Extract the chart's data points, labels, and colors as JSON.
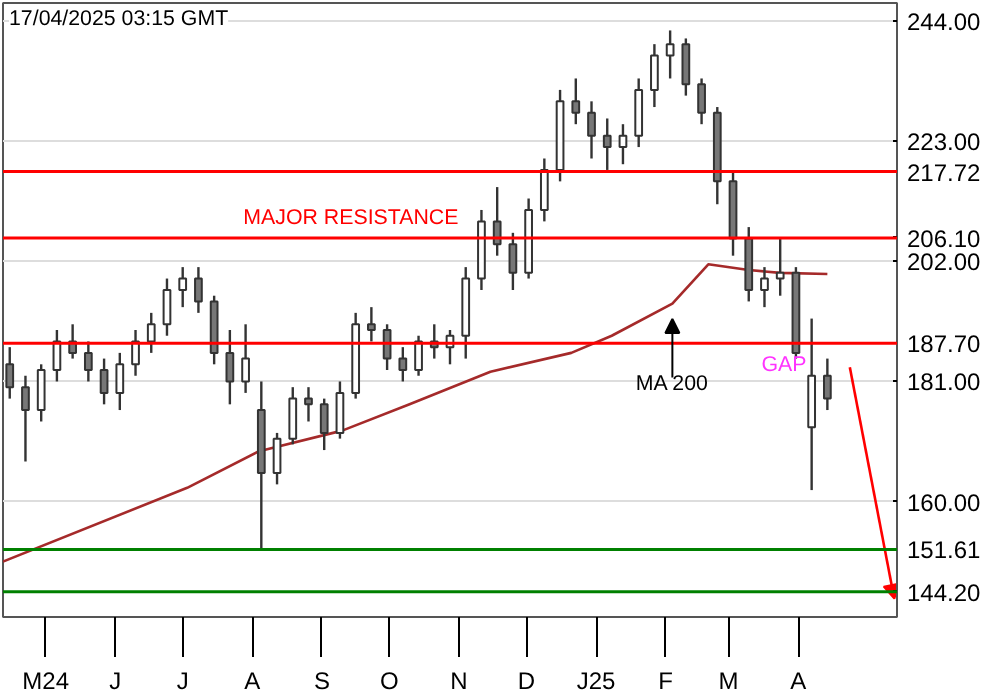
{
  "chart_data": {
    "type": "candlestick",
    "x": [
      "2024-04-15",
      "2024-04-22",
      "2024-04-29",
      "2024-05-06",
      "2024-05-13",
      "2024-05-20",
      "2024-05-27",
      "2024-06-03",
      "2024-06-10",
      "2024-06-17",
      "2024-06-24",
      "2024-07-01",
      "2024-07-08",
      "2024-07-15",
      "2024-07-22",
      "2024-07-29",
      "2024-08-05",
      "2024-08-12",
      "2024-08-19",
      "2024-08-26",
      "2024-09-02",
      "2024-09-09",
      "2024-09-16",
      "2024-09-23",
      "2024-09-30",
      "2024-10-07",
      "2024-10-14",
      "2024-10-21",
      "2024-10-28",
      "2024-11-04",
      "2024-11-11",
      "2024-11-18",
      "2024-11-25",
      "2024-12-02",
      "2024-12-09",
      "2024-12-16",
      "2024-12-23",
      "2024-12-30",
      "2025-01-06",
      "2025-01-13",
      "2025-01-20",
      "2025-01-27",
      "2025-02-03",
      "2025-02-10",
      "2025-02-17",
      "2025-02-24",
      "2025-03-03",
      "2025-03-10",
      "2025-03-17",
      "2025-03-24",
      "2025-03-31",
      "2025-04-07",
      "2025-04-14"
    ],
    "ohlc": [
      [
        184,
        187,
        178,
        180
      ],
      [
        180,
        182,
        167,
        176
      ],
      [
        176,
        184,
        174,
        183
      ],
      [
        183,
        190,
        181,
        188
      ],
      [
        188,
        191,
        185,
        186
      ],
      [
        186,
        188,
        181,
        183
      ],
      [
        183,
        185,
        177,
        179
      ],
      [
        179,
        186,
        176,
        184
      ],
      [
        184,
        190,
        182,
        188
      ],
      [
        188,
        193,
        186,
        191
      ],
      [
        191,
        199,
        189,
        197
      ],
      [
        197,
        201,
        194,
        199
      ],
      [
        199,
        201,
        193,
        195
      ],
      [
        195,
        196,
        184,
        186
      ],
      [
        186,
        190,
        177,
        181
      ],
      [
        181,
        191,
        179,
        185
      ],
      [
        176,
        181,
        151.61,
        165
      ],
      [
        165,
        172,
        163,
        171
      ],
      [
        171,
        180,
        170,
        178
      ],
      [
        178,
        180,
        174,
        177
      ],
      [
        177,
        178,
        169,
        172
      ],
      [
        172,
        181,
        171,
        179
      ],
      [
        179,
        193,
        178,
        191
      ],
      [
        191,
        194,
        188,
        190
      ],
      [
        190,
        191,
        183,
        185
      ],
      [
        185,
        187,
        181,
        183
      ],
      [
        183,
        189,
        182,
        188
      ],
      [
        188,
        191,
        185,
        187
      ],
      [
        187,
        190,
        184,
        189
      ],
      [
        189,
        201,
        185,
        199
      ],
      [
        199,
        211,
        197,
        209
      ],
      [
        209,
        215,
        203,
        205
      ],
      [
        205,
        207,
        197,
        200
      ],
      [
        200,
        213,
        199,
        211
      ],
      [
        211,
        220,
        209,
        218
      ],
      [
        218,
        232,
        216,
        230
      ],
      [
        230,
        234,
        226,
        228
      ],
      [
        228,
        230,
        220,
        224
      ],
      [
        224,
        227,
        218,
        222
      ],
      [
        222,
        226,
        219,
        224
      ],
      [
        224,
        234,
        222,
        232
      ],
      [
        232,
        240,
        229,
        238
      ],
      [
        238,
        242.4,
        234,
        240
      ],
      [
        240,
        241,
        231,
        233
      ],
      [
        233,
        234,
        226,
        228
      ],
      [
        228,
        229,
        212,
        216
      ],
      [
        216,
        217.72,
        203,
        206
      ],
      [
        206,
        208,
        195,
        197
      ],
      [
        197,
        201,
        194,
        199
      ],
      [
        199,
        206,
        196,
        200
      ],
      [
        200,
        201,
        185,
        186
      ],
      [
        173,
        192,
        162,
        182
      ],
      [
        182,
        185,
        176,
        178
      ]
    ],
    "color": "#333333",
    "series": [
      {
        "type": "line",
        "color": "#a52a2a",
        "x": [
          "2024-04-12",
          "2024-07-03",
          "2024-08-04",
          "2024-09-10",
          "2024-10-10",
          "2024-11-15",
          "2024-12-21",
          "2025-01-08",
          "2025-02-04",
          "2025-02-20",
          "2025-03-10",
          "2025-03-24",
          "2025-04-14"
        ],
        "values": [
          149.5,
          162.4,
          168.8,
          172.4,
          177,
          182.7,
          186,
          189,
          194.6,
          201.5,
          200.5,
          200,
          199.8
        ]
      },
      {
        "type": "line",
        "color": "#ff0000",
        "x": [
          "2025-04-24",
          "2025-05-13"
        ],
        "values": [
          183.5,
          144.6
        ]
      }
    ],
    "xlim": [
      "2024-04-12",
      "2025-05-15"
    ],
    "xticks": [
      {
        "value": "2024-05-01",
        "label": "M24"
      },
      {
        "value": "2024-06-01",
        "label": "J"
      },
      {
        "value": "2024-07-01",
        "label": "J"
      },
      {
        "value": "2024-08-01",
        "label": "A"
      },
      {
        "value": "2024-09-01",
        "label": "S"
      },
      {
        "value": "2024-10-01",
        "label": "O"
      },
      {
        "value": "2024-11-01",
        "label": "N"
      },
      {
        "value": "2024-12-01",
        "label": "D"
      },
      {
        "value": "2025-01-01",
        "label": "J25"
      },
      {
        "value": "2025-02-01",
        "label": "F"
      },
      {
        "value": "2025-03-01",
        "label": "M"
      },
      {
        "value": "2025-04-01",
        "label": "A"
      }
    ],
    "ylim": [
      139.8,
      247.2
    ],
    "yticks": [
      {
        "value": 160,
        "label": "160.00"
      },
      {
        "value": 181,
        "label": "181.00"
      },
      {
        "value": 202,
        "label": "202.00"
      },
      {
        "value": 223,
        "label": "223.00"
      },
      {
        "value": 244,
        "label": "244.00"
      }
    ],
    "grid": "y",
    "ref_lines": [
      {
        "axis": "y",
        "value": 217.72,
        "label": "217.72",
        "color": "#ff0000"
      },
      {
        "axis": "y",
        "value": 206.1,
        "label": "206.10",
        "color": "#ff0000"
      },
      {
        "axis": "y",
        "value": 187.7,
        "label": "187.70",
        "color": "#ff0000"
      },
      {
        "axis": "y",
        "value": 151.61,
        "label": "151.61",
        "color": "#008000"
      },
      {
        "axis": "y",
        "value": 144.2,
        "label": "144.20",
        "color": "#008000"
      }
    ],
    "annotations": [
      "17/04/2025 03:15 GMT",
      {
        "text": "MAJOR RESISTANCE",
        "x": "2024-07-28",
        "y": 206.1
      },
      {
        "text": "MA 200",
        "x": "2025-02-04",
        "y": 194.6
      },
      {
        "text": "GAP",
        "x": "2025-03-31",
        "y": 187.7
      }
    ]
  }
}
